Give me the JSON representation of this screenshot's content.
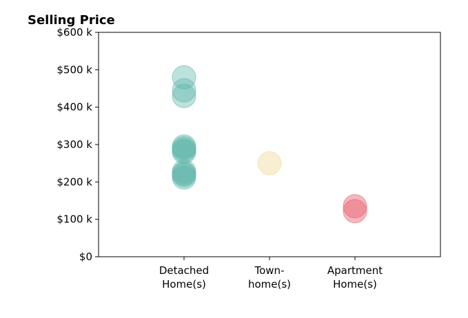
{
  "chart_data": {
    "type": "scatter",
    "title": "Selling Price",
    "xlabel": "",
    "ylabel": "",
    "categories": [
      [
        "Detached",
        "Home(s)"
      ],
      [
        "Town-",
        "home(s)"
      ],
      [
        "Apartment",
        "Home(s)"
      ]
    ],
    "xlim": [
      0,
      4
    ],
    "ylim": [
      0,
      600000
    ],
    "y_ticks": [
      0,
      100000,
      200000,
      300000,
      400000,
      500000,
      600000
    ],
    "y_tick_labels": [
      "$0",
      "$100 k",
      "$200 k",
      "$300 k",
      "$400 k",
      "$500 k",
      "$600 k"
    ],
    "grid": false,
    "series": [
      {
        "category_index": 1,
        "color": "#5ab4a8",
        "opacity": 0.4,
        "values": [
          480000,
          445000,
          430000,
          295000,
          290000,
          285000,
          280000,
          228000,
          222000,
          218000,
          212000
        ]
      },
      {
        "category_index": 2,
        "color": "#f0d99a",
        "opacity": 0.45,
        "values": [
          250000
        ]
      },
      {
        "category_index": 3,
        "color": "#e8606f",
        "opacity": 0.45,
        "values": [
          135000,
          122000
        ]
      }
    ]
  }
}
